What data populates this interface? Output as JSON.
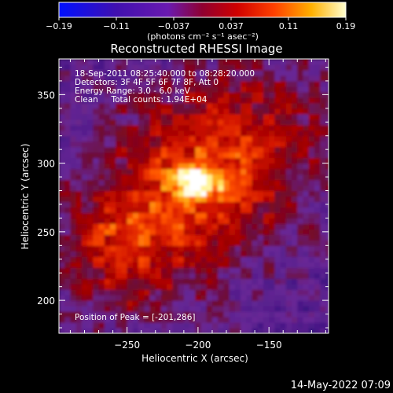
{
  "chart_data": {
    "type": "heatmap",
    "title": "Reconstructed RHESSI Image",
    "xlabel": "Heliocentric X (arcsec)",
    "ylabel": "Heliocentric Y (arcsec)",
    "xlim": [
      -298,
      -108
    ],
    "ylim": [
      176,
      376
    ],
    "xticks": [
      -250,
      -200,
      -150
    ],
    "yticks": [
      200,
      250,
      300,
      350
    ],
    "colorbar": {
      "range": [
        -0.19,
        0.19
      ],
      "ticks": [
        "-0.19",
        "-0.11",
        "-0.037",
        "0.037",
        "0.11",
        "0.19"
      ],
      "unit": "(photons cm⁻² s⁻¹ asec⁻²)"
    },
    "annotations": [
      "18-Sep-2011 08:25:40.000 to 08:28:20.000",
      "Detectors: 3F 4F 5F 6F 7F 8F, Att 0",
      "Energy Range: 3.0 - 6.0 keV",
      "Clean     Total counts: 1.94E+04"
    ],
    "peak": {
      "x": -201,
      "y": 286,
      "label": "Position of Peak = [-201,286]"
    },
    "colormap": [
      "#0000ff",
      "#3a0080",
      "#6a1aa0",
      "#8a0020",
      "#c00000",
      "#ff3000",
      "#ffa000",
      "#ffff80",
      "#ffffff"
    ]
  },
  "timestamp": "14-May-2022 07:09"
}
